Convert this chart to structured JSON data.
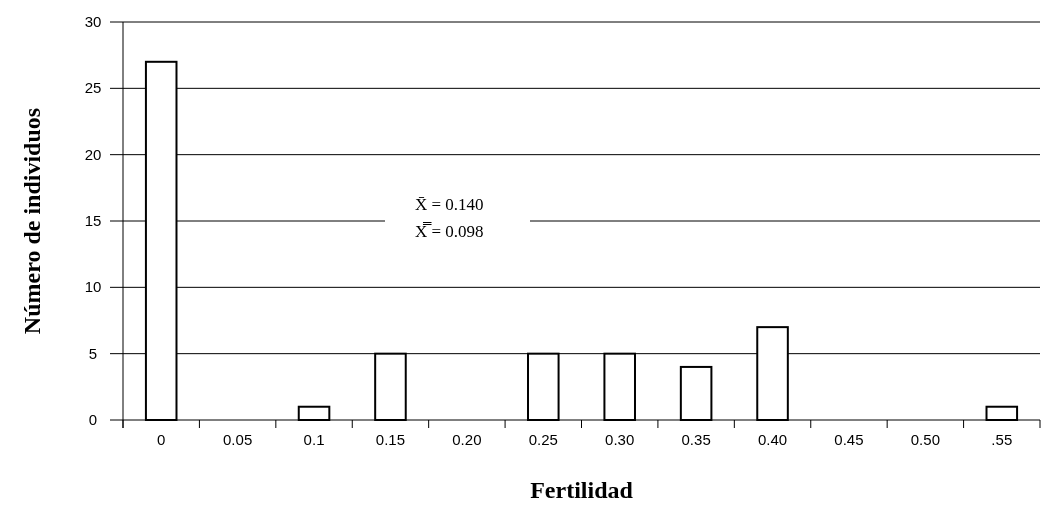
{
  "chart_data": {
    "type": "bar",
    "xlabel": "Fertilidad",
    "ylabel": "Número de individuos",
    "categories": [
      "0",
      "0.05",
      "0.1",
      "0.15",
      "0.20",
      "0.25",
      "0.30",
      "0.35",
      "0.40",
      "0.45",
      "0.50",
      ".55"
    ],
    "values": [
      27,
      0,
      1,
      5,
      0,
      5,
      5,
      4,
      7,
      0,
      0,
      1
    ],
    "color": "#ffffff",
    "ylim": [
      0,
      30
    ],
    "yticks": [
      0,
      5,
      10,
      15,
      20,
      25,
      30
    ],
    "grid": "y",
    "annotations": [
      "X̄ = 0.140",
      "X̿ = 0.098"
    ]
  }
}
